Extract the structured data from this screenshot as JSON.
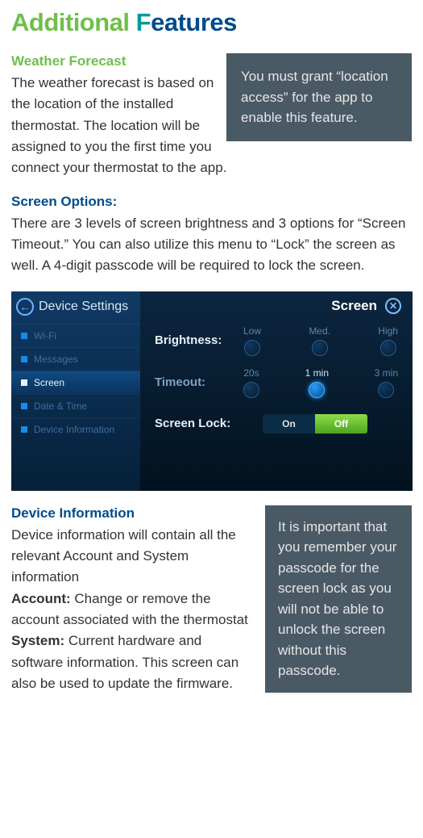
{
  "title": {
    "part1": "Additional",
    "part2_first_letter": "F",
    "part2_rest": "eatures"
  },
  "weather": {
    "heading": "Weather Forecast",
    "text": "The weather forecast is based on the location of the installed thermostat. The location will be assigned to you the first time you connect your thermostat to the app.",
    "callout": "You must grant “location access” for the app to enable this feature."
  },
  "screen_options": {
    "heading": "Screen Options:",
    "text": "There are 3 levels of screen brightness and 3 options for “Screen Timeout.” You can also utilize this menu to “Lock” the screen as well. A 4-digit passcode will be required to lock the screen."
  },
  "device_ui": {
    "sidebar_title": "Device Settings",
    "items": [
      {
        "label": "Wi-Fi",
        "active": false
      },
      {
        "label": "Messages",
        "active": false
      },
      {
        "label": "Screen",
        "active": true
      },
      {
        "label": "Date & Time",
        "active": false
      },
      {
        "label": "Device Information",
        "active": false
      }
    ],
    "panel_title": "Screen",
    "brightness": {
      "label": "Brightness:",
      "options": [
        "Low",
        "Med.",
        "High"
      ],
      "selected_index": -1
    },
    "timeout": {
      "label": "Timeout:",
      "options": [
        "20s",
        "1 min",
        "3 min"
      ],
      "selected_index": 1
    },
    "screen_lock": {
      "label": "Screen Lock:",
      "on_label": "On",
      "off_label": "Off",
      "state": "off"
    }
  },
  "device_info": {
    "heading": "Device Information",
    "intro": "Device information will contain all the relevant Account and System information",
    "account_label": "Account:",
    "account_text": " Change or remove the account associated with the thermostat",
    "system_label": "System:",
    "system_text": " Current hardware and software information. This screen can also be used to update the firmware.",
    "callout": "It is important that you remember your passcode for the screen lock as you will not be able to unlock the screen without this passcode."
  }
}
